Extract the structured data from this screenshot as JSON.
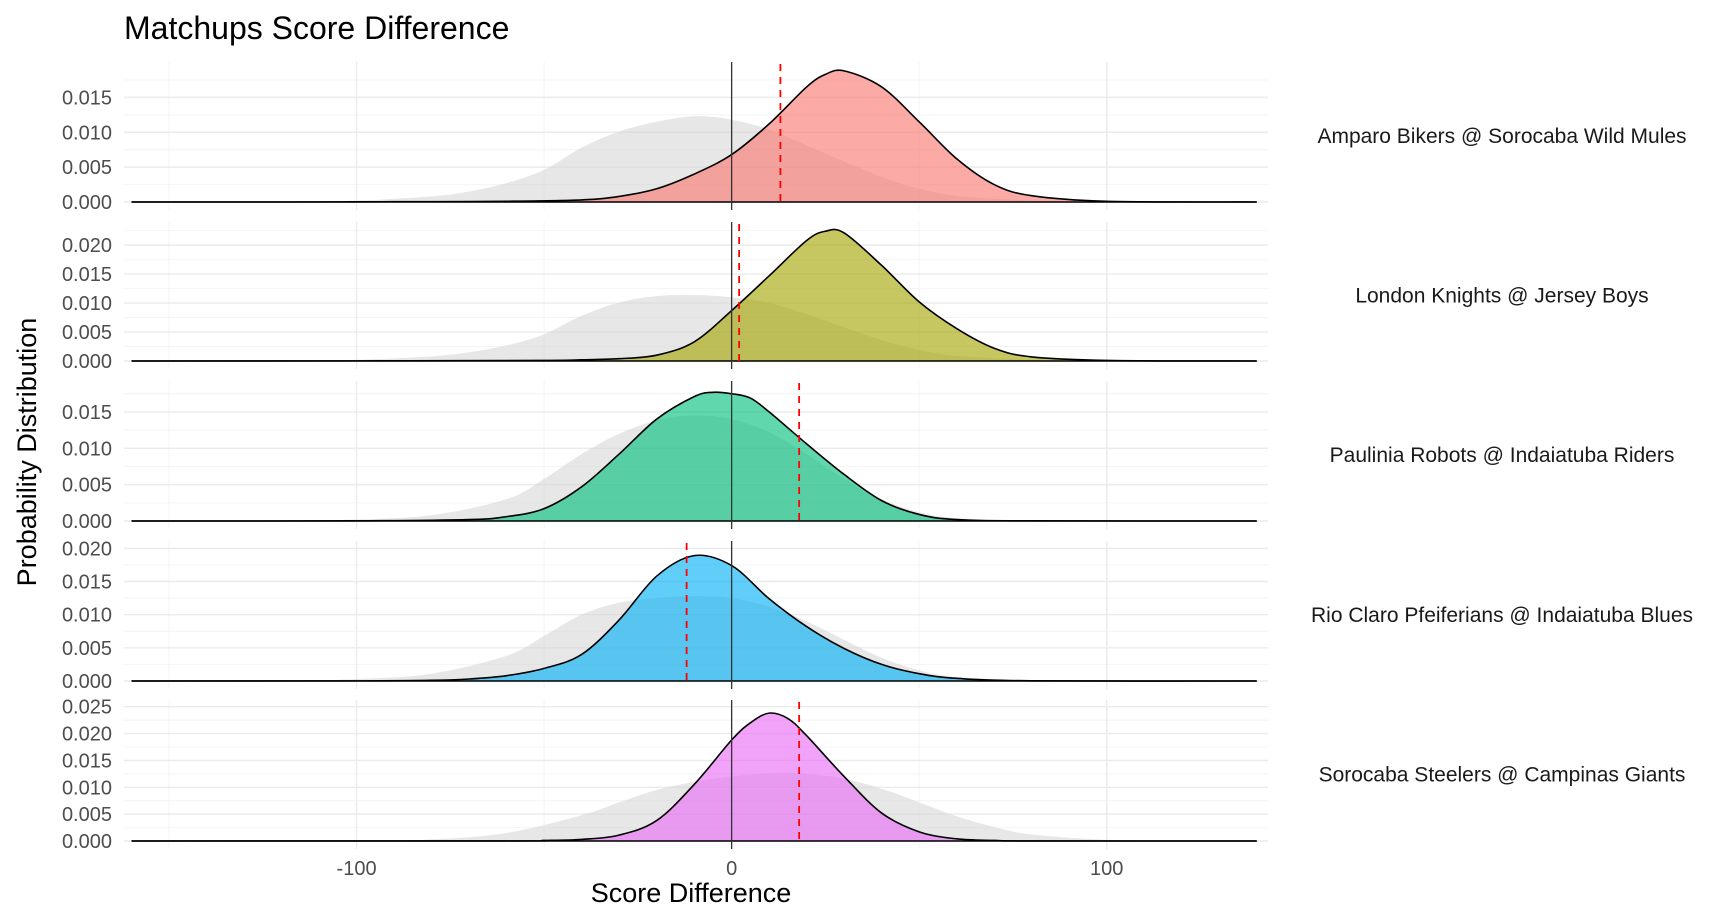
{
  "chart_data": {
    "type": "area",
    "title": "Matchups Score Difference",
    "xlabel": "Score Difference",
    "ylabel": "Probability Distribution",
    "xlim": [
      -162,
      143
    ],
    "x_ticks": [
      -100,
      0,
      100
    ],
    "x_tick_labels": [
      "-100",
      "0",
      "100"
    ],
    "x_minor_ticks": [
      -150,
      -50,
      50,
      150
    ],
    "grid": true,
    "facets": "stacked rows, one per matchup, label on right",
    "background_series": "light gray reference density behind each matchup",
    "panels": [
      {
        "label": "Amparo Bikers @ Sorocaba Wild Mules",
        "color": "#F8766D",
        "ylim": [
          0,
          0.0195
        ],
        "y_ticks": [
          0,
          0.005,
          0.01,
          0.015
        ],
        "y_tick_labels": [
          "0.000",
          "0.005",
          "0.010",
          "0.015"
        ],
        "vline_x": 13,
        "density": {
          "x": [
            -160,
            -120,
            -100,
            -80,
            -60,
            -40,
            -30,
            -20,
            -10,
            0,
            10,
            20,
            25,
            30,
            40,
            50,
            60,
            70,
            80,
            100,
            140
          ],
          "y": [
            0,
            0,
            3e-05,
            5e-05,
            0.0001,
            0.0003,
            0.0008,
            0.0019,
            0.004,
            0.0068,
            0.0112,
            0.0165,
            0.0183,
            0.0188,
            0.0165,
            0.0115,
            0.0062,
            0.0025,
            0.0009,
            0.0001,
            0
          ]
        },
        "reference": {
          "x": [
            -160,
            -120,
            -100,
            -80,
            -70,
            -60,
            -50,
            -40,
            -30,
            -20,
            -10,
            0,
            10,
            20,
            30,
            40,
            50,
            60,
            80,
            100,
            140
          ],
          "y": [
            0,
            5e-05,
            0.0002,
            0.0008,
            0.0015,
            0.0027,
            0.0046,
            0.0078,
            0.0101,
            0.0115,
            0.0123,
            0.0118,
            0.0104,
            0.0081,
            0.0058,
            0.0036,
            0.0019,
            0.0009,
            0.0002,
            3e-05,
            0
          ]
        }
      },
      {
        "label": "London Knights @ Jersey Boys",
        "color": "#A3A500",
        "ylim": [
          0,
          0.0233
        ],
        "y_ticks": [
          0,
          0.005,
          0.01,
          0.015,
          0.02
        ],
        "y_tick_labels": [
          "0.000",
          "0.005",
          "0.010",
          "0.015",
          "0.020"
        ],
        "vline_x": 2,
        "density": {
          "x": [
            -160,
            -100,
            -50,
            -40,
            -30,
            -20,
            -10,
            0,
            10,
            20,
            25,
            30,
            40,
            50,
            60,
            70,
            80,
            100,
            140
          ],
          "y": [
            0,
            2e-05,
            0.0001,
            0.0002,
            0.0004,
            0.001,
            0.0033,
            0.0087,
            0.0147,
            0.0208,
            0.0224,
            0.0221,
            0.0165,
            0.0102,
            0.0056,
            0.0022,
            0.0007,
            0.0001,
            0
          ]
        },
        "reference": {
          "x": [
            -160,
            -120,
            -100,
            -80,
            -70,
            -60,
            -50,
            -40,
            -30,
            -20,
            -10,
            0,
            10,
            20,
            30,
            40,
            50,
            60,
            80,
            100,
            140
          ],
          "y": [
            0,
            5e-05,
            0.0002,
            0.0008,
            0.0015,
            0.0027,
            0.0046,
            0.0078,
            0.0101,
            0.0112,
            0.0114,
            0.011,
            0.01,
            0.0081,
            0.0058,
            0.0036,
            0.0019,
            0.0009,
            0.0002,
            3e-05,
            0
          ]
        }
      },
      {
        "label": "Paulinia Robots @ Indaiatuba Riders",
        "color": "#00BF7D",
        "ylim": [
          0,
          0.0187
        ],
        "y_ticks": [
          0,
          0.005,
          0.01,
          0.015
        ],
        "y_tick_labels": [
          "0.000",
          "0.005",
          "0.010",
          "0.015"
        ],
        "vline_x": 18,
        "density": {
          "x": [
            -160,
            -100,
            -70,
            -60,
            -50,
            -40,
            -30,
            -20,
            -10,
            -5,
            0,
            5,
            10,
            20,
            30,
            40,
            50,
            60,
            80,
            140
          ],
          "y": [
            0,
            2e-05,
            0.0002,
            0.0006,
            0.0017,
            0.0047,
            0.0092,
            0.014,
            0.0171,
            0.0177,
            0.0175,
            0.0169,
            0.015,
            0.0106,
            0.0064,
            0.0028,
            0.0009,
            0.0002,
            2e-05,
            0
          ]
        },
        "reference": {
          "x": [
            -160,
            -120,
            -100,
            -80,
            -60,
            -50,
            -40,
            -30,
            -20,
            -10,
            0,
            10,
            20,
            30,
            40,
            50,
            60,
            80,
            100,
            140
          ],
          "y": [
            0,
            5e-05,
            0.0002,
            0.0008,
            0.003,
            0.0058,
            0.0092,
            0.012,
            0.0138,
            0.0145,
            0.014,
            0.0122,
            0.0092,
            0.0058,
            0.003,
            0.0012,
            0.0004,
            0.0001,
            1e-05,
            0
          ]
        }
      },
      {
        "label": "Rio Claro Pfeiferians @ Indaiatuba Blues",
        "color": "#00B0F6",
        "ylim": [
          0,
          0.0205
        ],
        "y_ticks": [
          0,
          0.005,
          0.01,
          0.015,
          0.02
        ],
        "y_tick_labels": [
          "0.000",
          "0.005",
          "0.010",
          "0.015",
          "0.020"
        ],
        "vline_x": -12,
        "density": {
          "x": [
            -160,
            -100,
            -80,
            -70,
            -60,
            -50,
            -40,
            -30,
            -20,
            -10,
            0,
            10,
            20,
            30,
            40,
            50,
            60,
            80,
            140
          ],
          "y": [
            0,
            2e-05,
            0.0001,
            0.0003,
            0.0008,
            0.0019,
            0.004,
            0.0092,
            0.0158,
            0.0189,
            0.0174,
            0.0124,
            0.0082,
            0.0049,
            0.0025,
            0.0011,
            0.0004,
            3e-05,
            0
          ]
        },
        "reference": {
          "x": [
            -160,
            -120,
            -100,
            -80,
            -60,
            -50,
            -40,
            -30,
            -20,
            -10,
            0,
            10,
            20,
            30,
            40,
            50,
            60,
            80,
            100,
            140
          ],
          "y": [
            0,
            5e-05,
            0.0003,
            0.0011,
            0.0038,
            0.0068,
            0.01,
            0.0118,
            0.0125,
            0.0128,
            0.0125,
            0.0112,
            0.009,
            0.0062,
            0.0035,
            0.0016,
            0.0006,
            0.0001,
            1e-05,
            0
          ]
        }
      },
      {
        "label": "Sorocaba Steelers @ Campinas Giants",
        "color": "#E76BF3",
        "ylim": [
          0,
          0.0255
        ],
        "y_ticks": [
          0,
          0.005,
          0.01,
          0.015,
          0.02,
          0.025
        ],
        "y_tick_labels": [
          "0.000",
          "0.005",
          "0.010",
          "0.015",
          "0.020",
          "0.025"
        ],
        "vline_x": 18,
        "density": {
          "x": [
            -160,
            -60,
            -50,
            -40,
            -30,
            -20,
            -10,
            0,
            5,
            10,
            15,
            20,
            30,
            40,
            50,
            60,
            70,
            80,
            140
          ],
          "y": [
            0,
            2e-05,
            0.0001,
            0.0003,
            0.0011,
            0.0038,
            0.0105,
            0.0188,
            0.022,
            0.0238,
            0.0228,
            0.0196,
            0.012,
            0.0052,
            0.0017,
            0.0004,
            0.0001,
            1e-05,
            0
          ]
        },
        "reference": {
          "x": [
            -160,
            -100,
            -80,
            -60,
            -40,
            -30,
            -20,
            -10,
            0,
            10,
            20,
            30,
            40,
            50,
            60,
            70,
            80,
            100,
            120,
            140
          ],
          "y": [
            0,
            5e-05,
            0.0003,
            0.0015,
            0.0048,
            0.0072,
            0.0095,
            0.011,
            0.012,
            0.0126,
            0.0125,
            0.0116,
            0.0097,
            0.0072,
            0.0046,
            0.0026,
            0.0012,
            0.0002,
            3e-05,
            0
          ]
        }
      }
    ]
  }
}
